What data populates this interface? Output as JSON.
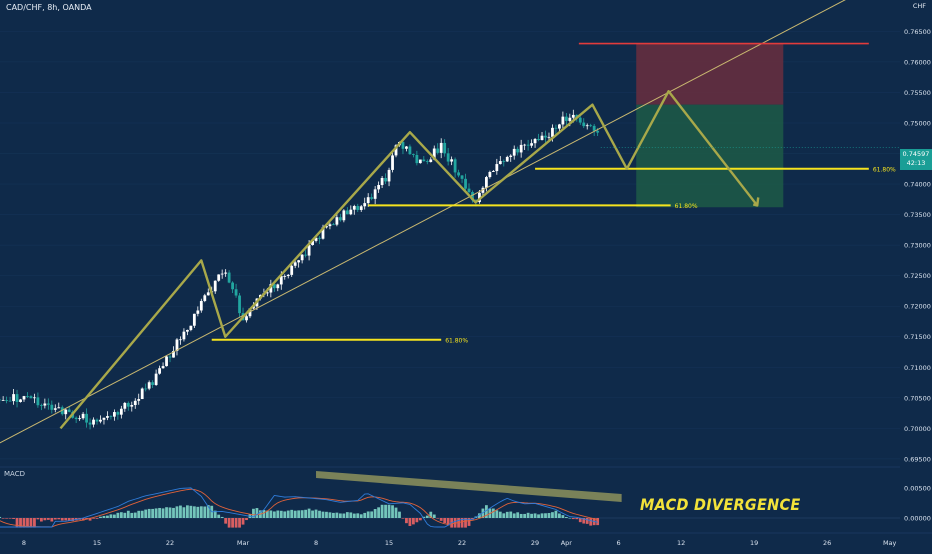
{
  "header": {
    "symbol": "CAD/CHF",
    "interval": "8h",
    "broker": "OANDA",
    "title": "CAD/CHF, 8h, OANDA"
  },
  "axis_unit": "CHF",
  "price_label": {
    "price": "0.74597",
    "countdown": "42:13"
  },
  "annotation": {
    "divergence": "MACD DIVERGENCE"
  },
  "macd_label": "MACD",
  "colors": {
    "background": "#0f2a4a",
    "bull": "#ffffff",
    "bear": "#22a6a0",
    "trendline": "#c9b870",
    "zigzag": "#a8a84a",
    "fib": "#f5e31e",
    "stop": "#e23b3b",
    "target_zone": "#1d5a47",
    "stop_zone": "#6a2e3e",
    "macd_line": "#2f7bd8",
    "signal_line": "#e0623a",
    "hist_pos": "#7fd6c8",
    "hist_neg": "#f06464"
  },
  "chart_data": {
    "type": "candlestick",
    "title": "CAD/CHF, 8h, OANDA",
    "ylim": [
      0.694,
      0.7685
    ],
    "y_ticks": [
      "0.69500",
      "0.70000",
      "0.70500",
      "0.71000",
      "0.71500",
      "0.72000",
      "0.72500",
      "0.73000",
      "0.73500",
      "0.74000",
      "0.74500",
      "0.75000",
      "0.75500",
      "0.76000",
      "0.76500"
    ],
    "x_ticks": [
      {
        "label": "8",
        "day": 8
      },
      {
        "label": "15",
        "day": 15
      },
      {
        "label": "22",
        "day": 22
      },
      {
        "label": "Mar",
        "day": 29
      },
      {
        "label": "8",
        "day": 36
      },
      {
        "label": "15",
        "day": 43
      },
      {
        "label": "22",
        "day": 50
      },
      {
        "label": "29",
        "day": 57
      },
      {
        "label": "Apr",
        "day": 60
      },
      {
        "label": "6",
        "day": 65
      },
      {
        "label": "12",
        "day": 71
      },
      {
        "label": "19",
        "day": 78
      },
      {
        "label": "26",
        "day": 85
      },
      {
        "label": "May",
        "day": 91
      }
    ],
    "price_path": [
      [
        8.0,
        0.705
      ],
      [
        11.5,
        0.703
      ],
      [
        15.0,
        0.701
      ],
      [
        16.5,
        0.7018
      ],
      [
        20.0,
        0.707
      ],
      [
        22.0,
        0.712
      ],
      [
        24.0,
        0.7175
      ],
      [
        27.0,
        0.726
      ],
      [
        28.0,
        0.7235
      ],
      [
        29.0,
        0.717
      ],
      [
        30.0,
        0.72
      ],
      [
        34.0,
        0.727
      ],
      [
        37.0,
        0.733
      ],
      [
        40.0,
        0.7365
      ],
      [
        41.3,
        0.7375
      ],
      [
        43.0,
        0.742
      ],
      [
        43.8,
        0.7475
      ],
      [
        46.0,
        0.7435
      ],
      [
        48.0,
        0.746
      ],
      [
        51.3,
        0.7372
      ],
      [
        53.0,
        0.7425
      ],
      [
        56.5,
        0.747
      ],
      [
        58.0,
        0.748
      ],
      [
        60.0,
        0.751
      ],
      [
        62.0,
        0.75
      ],
      [
        63.3,
        0.747
      ]
    ],
    "last_price": 0.74597,
    "fib_levels": [
      {
        "label": "61.80%",
        "price": 0.7145,
        "from_day": 26.0,
        "to_day": 48.0
      },
      {
        "label": "61.80%",
        "price": 0.7365,
        "from_day": 41.0,
        "to_day": 70.0
      },
      {
        "label": "61.80%",
        "price": 0.7425,
        "from_day": 57.0,
        "to_day": 89.0
      }
    ],
    "trendline": {
      "from": [
        5.0,
        0.697
      ],
      "to": [
        89.0,
        0.7722
      ]
    },
    "zigzag": [
      [
        11.5,
        0.7
      ],
      [
        25.0,
        0.7275
      ],
      [
        27.3,
        0.715
      ],
      [
        45.0,
        0.7485
      ],
      [
        51.3,
        0.737
      ],
      [
        62.5,
        0.753
      ],
      [
        65.8,
        0.7425
      ],
      [
        69.8,
        0.7552
      ],
      [
        78.3,
        0.7365
      ]
    ],
    "stop_level": {
      "price": 0.763,
      "from_day": 61.2,
      "to_day": 89.0
    },
    "position": {
      "entry": 0.753,
      "stop": 0.763,
      "target": 0.7362,
      "from_day": 66.7,
      "to_day": 80.8
    },
    "macd": {
      "label": "MACD",
      "y_ticks": [
        "0.00500",
        "0.00000"
      ],
      "ylim": [
        -0.002,
        0.008
      ],
      "divergence_highlight": {
        "from_day": 36.0,
        "to_day": 65.3
      }
    }
  }
}
